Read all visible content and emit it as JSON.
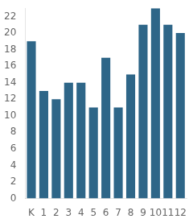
{
  "chart_data": {
    "type": "bar",
    "categories": [
      "K",
      "1",
      "2",
      "3",
      "4",
      "5",
      "6",
      "7",
      "8",
      "9",
      "10",
      "11",
      "12"
    ],
    "values": [
      19,
      13,
      12,
      14,
      14,
      11,
      17,
      11,
      15,
      21,
      23,
      21,
      20
    ],
    "color": "#2e6688",
    "ylim": [
      0,
      23
    ],
    "yticks": [
      0,
      2,
      4,
      6,
      8,
      10,
      12,
      14,
      16,
      18,
      20,
      22
    ],
    "grid": false
  }
}
